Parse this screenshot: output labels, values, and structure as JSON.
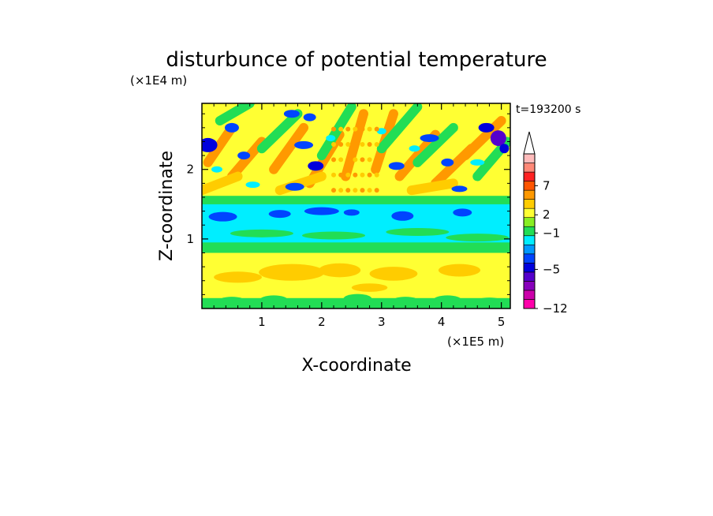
{
  "chart_data": {
    "type": "heatmap",
    "title": "disturbunce of potential temperature",
    "xlabel": "X-coordinate",
    "ylabel": "Z-coordinate",
    "x_unit": "(×1E5 m)",
    "y_unit": "(×1E4 m)",
    "time_label": "t=193200 s",
    "xlim": [
      0,
      5.15
    ],
    "ylim": [
      0,
      2.95
    ],
    "xticks": [
      "1",
      "2",
      "3",
      "4",
      "5"
    ],
    "yticks": [
      "1",
      "2"
    ],
    "colorbar": {
      "labels": [
        "7",
        "2",
        "−1",
        "−5",
        "−12"
      ],
      "colors": [
        "#ff00aa",
        "#cc00aa",
        "#8800bb",
        "#5500cc",
        "#0000dd",
        "#0044ff",
        "#0099ff",
        "#00eeff",
        "#22dd55",
        "#88ee22",
        "#ffff33",
        "#ffcc00",
        "#ff9900",
        "#ff5500",
        "#ff2222",
        "#ff8877",
        "#ffbbbb"
      ],
      "extend": "max"
    },
    "layers": [
      {
        "z": [
          0.0,
          0.15
        ],
        "level": "green"
      },
      {
        "z": [
          0.15,
          0.8
        ],
        "level": "yellow"
      },
      {
        "z": [
          0.8,
          0.95
        ],
        "level": "green"
      },
      {
        "z": [
          0.95,
          1.5
        ],
        "level": "cyan"
      },
      {
        "z": [
          1.5,
          2.95
        ],
        "level": "mixed orange/blue wave pattern"
      }
    ]
  }
}
